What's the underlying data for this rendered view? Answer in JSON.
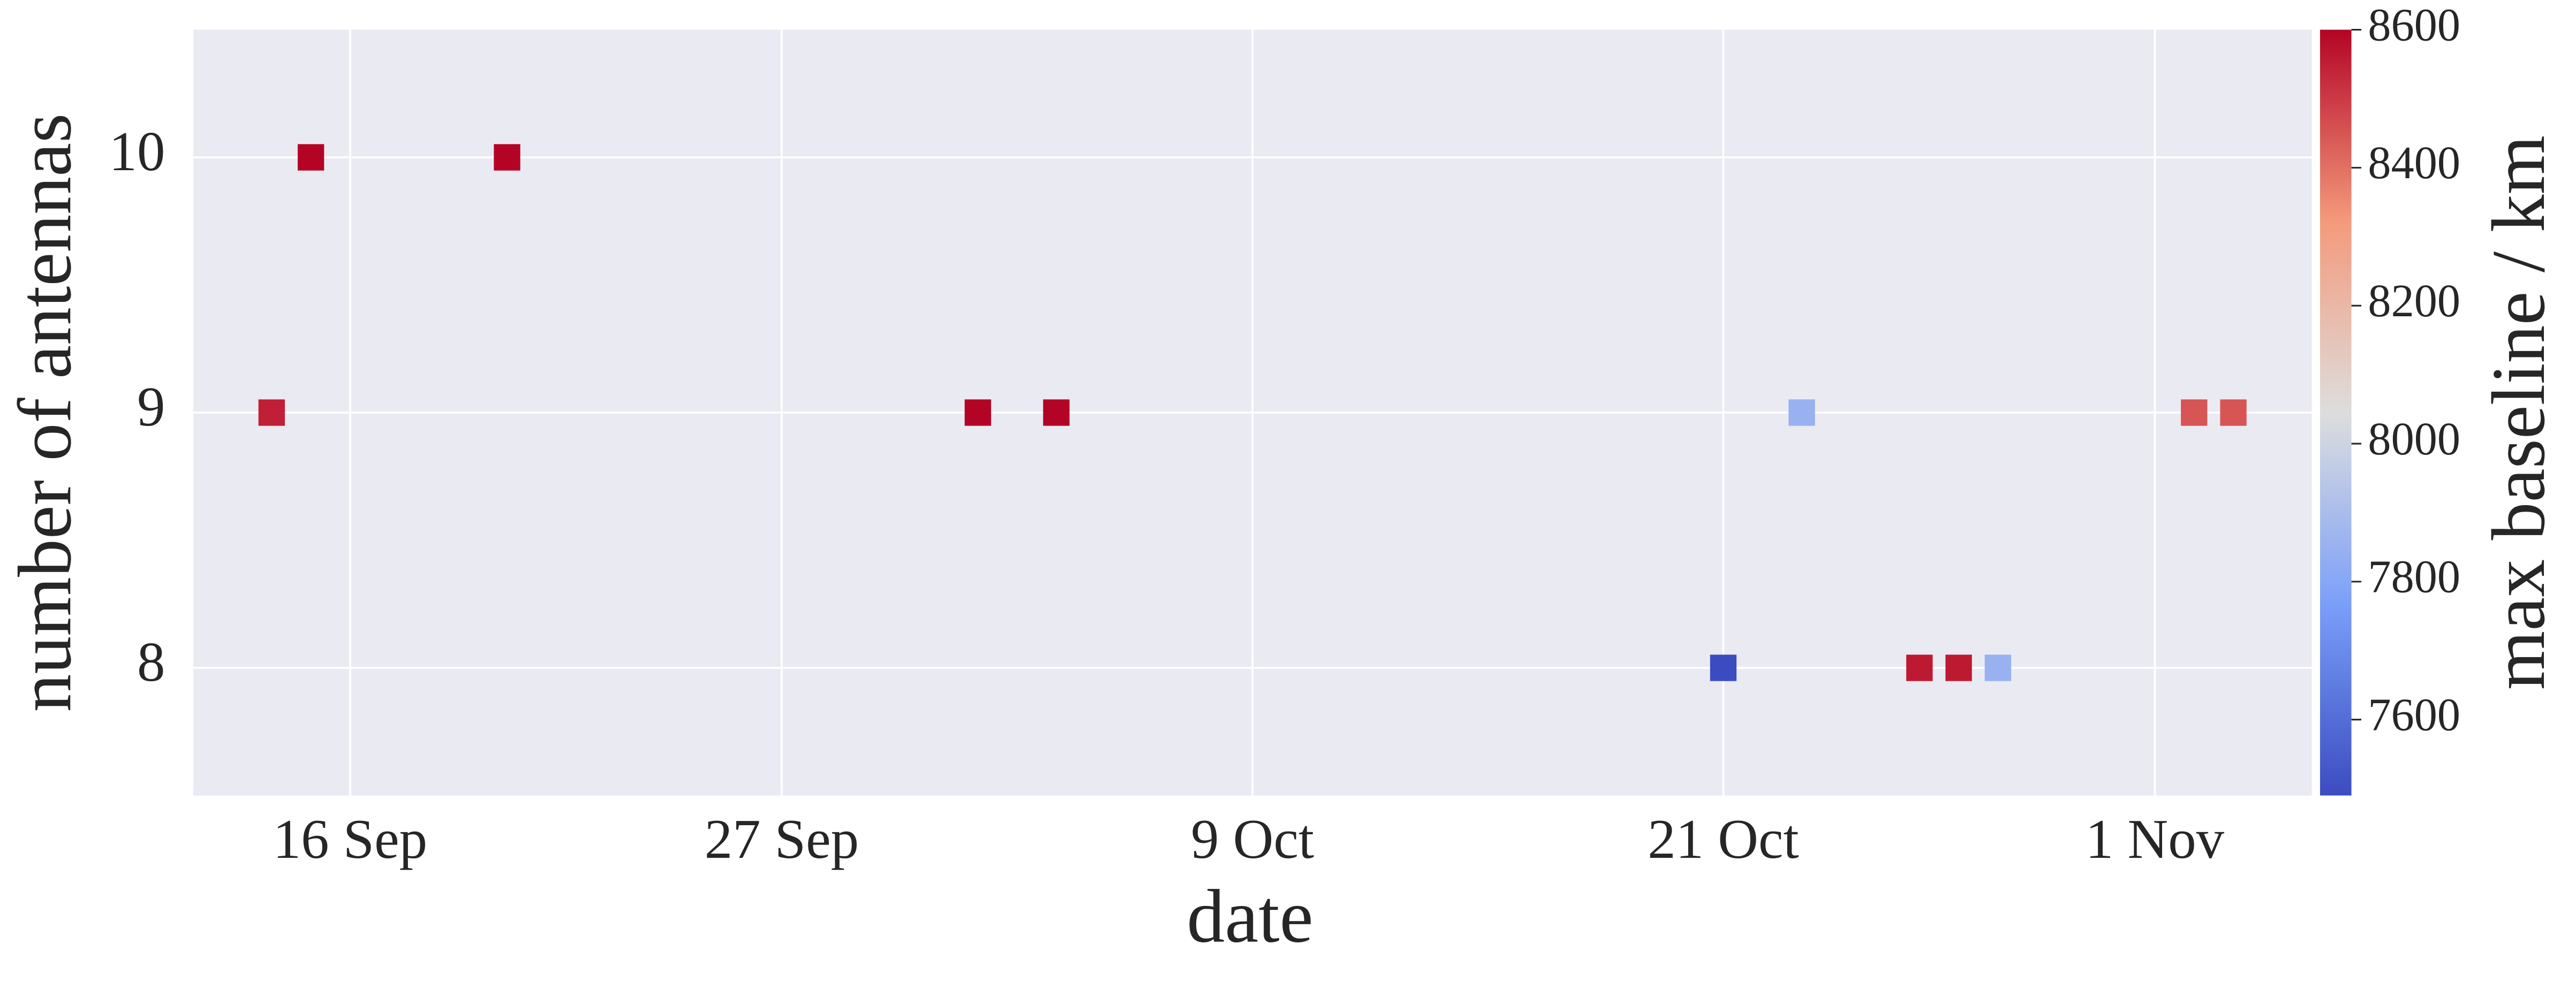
{
  "chart_data": {
    "type": "scatter",
    "x_label": "date",
    "y_label": "number of antennas",
    "colorbar_label": "max baseline / km",
    "x": [
      "14 Sep",
      "15 Sep",
      "20 Sep",
      "2 Oct",
      "4 Oct",
      "21 Oct",
      "23 Oct",
      "26 Oct",
      "27 Oct",
      "28 Oct",
      "2 Nov",
      "3 Nov"
    ],
    "values": [
      9,
      10,
      10,
      9,
      9,
      8,
      9,
      8,
      8,
      8,
      9,
      9
    ],
    "color_values": [
      8550,
      8600,
      8600,
      8600,
      8600,
      7490,
      7850,
      8560,
      8560,
      7850,
      8450,
      8450
    ],
    "colormap": "coolwarm",
    "clim": [
      7490,
      8600
    ],
    "cticks": [
      7600,
      7800,
      8000,
      8200,
      8400,
      8600
    ],
    "xlim": [
      "12 Sep",
      "5 Nov"
    ],
    "xticks": [
      "16 Sep",
      "27 Sep",
      "9 Oct",
      "21 Oct",
      "1 Nov"
    ],
    "ylim": [
      7.5,
      10.5
    ],
    "yticks": [
      8,
      9,
      10
    ],
    "grid": true,
    "background": "#eaeaf2"
  }
}
